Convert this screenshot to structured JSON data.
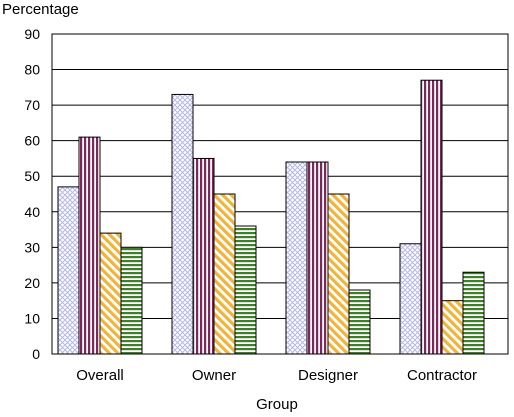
{
  "chart_data": {
    "type": "bar",
    "title": "",
    "ylabel": "Percentage",
    "xlabel": "Group",
    "ylim": [
      0,
      90
    ],
    "yticks": [
      0,
      10,
      20,
      30,
      40,
      50,
      60,
      70,
      80,
      90
    ],
    "grid": "horizontal",
    "legend": "none",
    "categories": [
      "Overall",
      "Owner",
      "Designer",
      "Contractor"
    ],
    "series": [
      {
        "pattern": "crosshatch",
        "color": "#b8b8e8",
        "values": [
          47,
          73,
          54,
          31
        ]
      },
      {
        "pattern": "vertical-stripes",
        "color": "#7a2a5a",
        "values": [
          61,
          55,
          54,
          77
        ]
      },
      {
        "pattern": "diagonal-stripes",
        "color": "#f2b33a",
        "values": [
          34,
          45,
          45,
          15
        ]
      },
      {
        "pattern": "horizontal-stripes",
        "color": "#3f7f2a",
        "values": [
          30,
          36,
          18,
          23
        ]
      }
    ]
  }
}
